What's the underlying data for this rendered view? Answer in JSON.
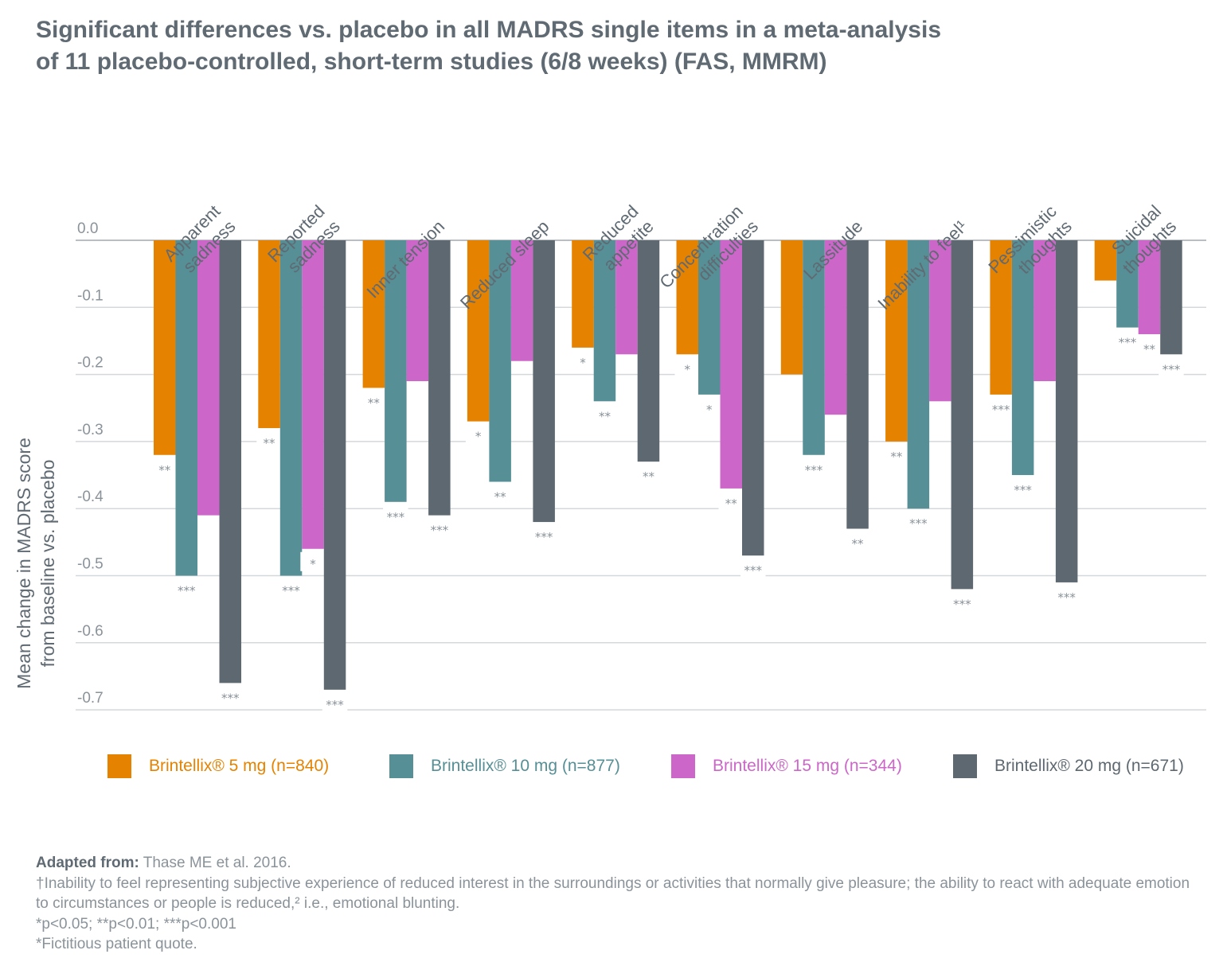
{
  "title_line1": "Significant differences vs. placebo in all MADRS single items in a meta-analysis",
  "title_line2": "of 11 placebo-controlled, short-term studies (6/8 weeks) (FAS, MMRM)",
  "chart_data": {
    "type": "bar",
    "title": "Significant differences vs. placebo in all MADRS single items in a meta-analysis of 11 placebo-controlled, short-term studies (6/8 weeks) (FAS, MMRM)",
    "xlabel": "",
    "ylabel": [
      "Mean change in MADRS score",
      "from baseline vs. placebo"
    ],
    "ylim": [
      -0.7,
      0.0
    ],
    "yticks": [
      "0.0",
      "-0.1",
      "-0.2",
      "-0.3",
      "-0.4",
      "-0.5",
      "-0.6",
      "-0.7"
    ],
    "ytick_values": [
      0.0,
      -0.1,
      -0.2,
      -0.3,
      -0.4,
      -0.5,
      -0.6,
      -0.7
    ],
    "grid": true,
    "legend_position": "bottom",
    "categories": [
      [
        "Apparent",
        "sadness"
      ],
      [
        "Reported",
        "sadness"
      ],
      [
        "Inner tension"
      ],
      [
        "Reduced sleep"
      ],
      [
        "Reduced",
        "appetite"
      ],
      [
        "Concentration",
        "difficulties"
      ],
      [
        "Lassitude"
      ],
      [
        "Inability to feel¹"
      ],
      [
        "Pessimistic",
        "thoughts"
      ],
      [
        "Suicidal",
        "thoughts"
      ]
    ],
    "series": [
      {
        "name": "Brintellix® 5 mg (n=840)",
        "color": "#e58200",
        "values": [
          -0.32,
          -0.28,
          -0.22,
          -0.27,
          -0.16,
          -0.17,
          -0.2,
          -0.3,
          -0.23,
          -0.06
        ],
        "significance": [
          "**",
          "**",
          "**",
          "*",
          "*",
          "*",
          "",
          "**",
          "***",
          ""
        ]
      },
      {
        "name": "Brintellix® 10 mg (n=877)",
        "color": "#568f95",
        "values": [
          -0.5,
          -0.5,
          -0.39,
          -0.36,
          -0.24,
          -0.23,
          -0.32,
          -0.4,
          -0.35,
          -0.13
        ],
        "significance": [
          "***",
          "***",
          "***",
          "**",
          "**",
          "*",
          "***",
          "***",
          "***",
          "***"
        ]
      },
      {
        "name": "Brintellix® 15 mg (n=344)",
        "color": "#cc66c8",
        "values": [
          -0.41,
          -0.46,
          -0.21,
          -0.18,
          -0.17,
          -0.37,
          -0.26,
          -0.24,
          -0.21,
          -0.14
        ],
        "significance": [
          "",
          "*",
          "",
          "",
          "",
          "**",
          "",
          "",
          "",
          "**"
        ]
      },
      {
        "name": "Brintellix® 20 mg (n=671)",
        "color": "#5d6870",
        "values": [
          -0.66,
          -0.67,
          -0.41,
          -0.42,
          -0.33,
          -0.47,
          -0.43,
          -0.52,
          -0.51,
          -0.17
        ],
        "significance": [
          "***",
          "***",
          "***",
          "***",
          "**",
          "***",
          "**",
          "***",
          "***",
          "***"
        ]
      }
    ]
  },
  "legend": [
    {
      "label": "Brintellix® 5 mg (n=840)",
      "color": "#e58200"
    },
    {
      "label": "Brintellix® 10 mg (n=877)",
      "color": "#568f95"
    },
    {
      "label": "Brintellix® 15 mg (n=344)",
      "color": "#cc66c8"
    },
    {
      "label": "Brintellix® 20 mg (n=671)",
      "color": "#5d6870"
    }
  ],
  "footer": {
    "adapted_label": "Adapted from:",
    "adapted_text": " Thase ME et al. 2016.",
    "note1": "†Inability to feel representing subjective experience of reduced interest in the surroundings or activities that normally give pleasure; the ability to react with adequate emotion to circumstances or people is reduced,² i.e., emotional blunting.",
    "note2": "*p<0.05; **p<0.01; ***p<0.001",
    "note3": "*Fictitious patient quote."
  }
}
